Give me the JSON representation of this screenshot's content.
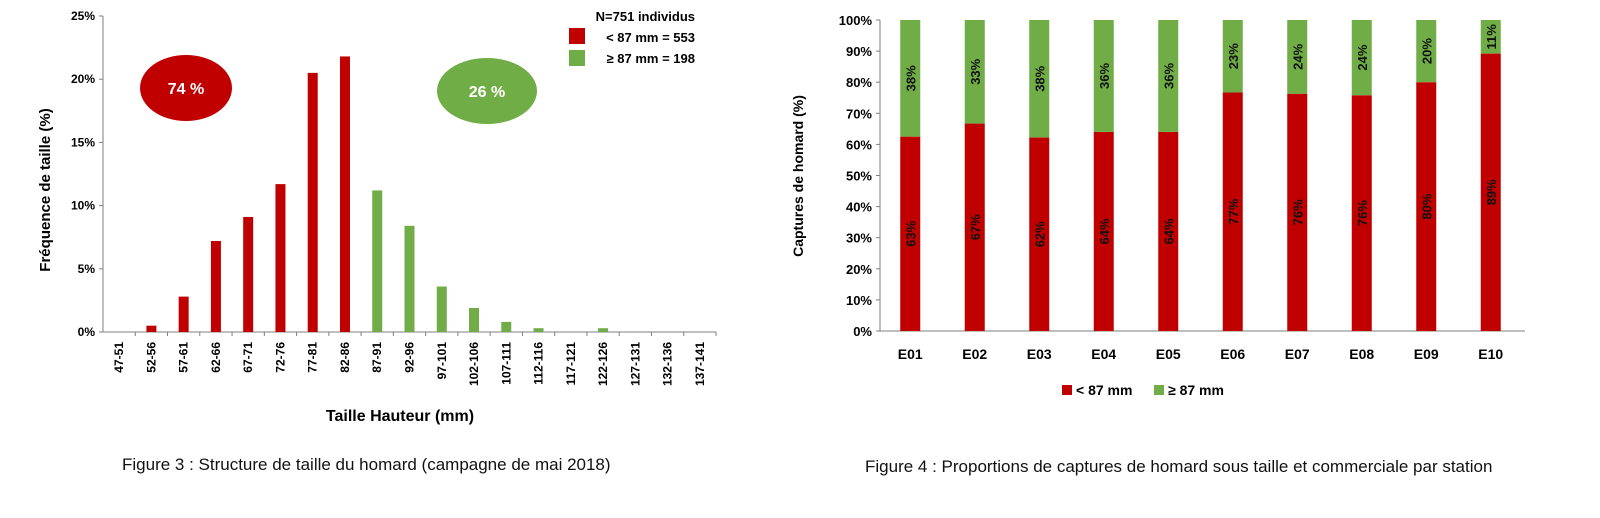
{
  "colors": {
    "red": "#c00000",
    "green": "#70ad47",
    "axis": "#7f7f7f"
  },
  "chart_data": [
    {
      "type": "bar",
      "title": "",
      "xlabel": "Taille Hauteur (mm)",
      "ylabel": "Fréquence de taille (%)",
      "ylim": [
        0,
        25
      ],
      "yticks": [
        "0%",
        "5%",
        "10%",
        "15%",
        "20%",
        "25%"
      ],
      "categories": [
        "47-51",
        "52-56",
        "57-61",
        "62-66",
        "67-71",
        "72-76",
        "77-81",
        "82-86",
        "87-91",
        "92-96",
        "97-101",
        "102-106",
        "107-111",
        "112-116",
        "117-121",
        "122-126",
        "127-131",
        "132-136",
        "137-141"
      ],
      "values": [
        0,
        0.5,
        2.8,
        7.2,
        9.1,
        11.7,
        20.5,
        21.8,
        11.2,
        8.4,
        3.6,
        1.9,
        0.8,
        0.3,
        0,
        0.3,
        0,
        0,
        0
      ],
      "series_of_category": [
        "red",
        "red",
        "red",
        "red",
        "red",
        "red",
        "red",
        "red",
        "green",
        "green",
        "green",
        "green",
        "green",
        "green",
        "green",
        "green",
        "green",
        "green",
        "green"
      ],
      "legend": {
        "title": "N=751 individus",
        "entries": [
          "< 87 mm = 553",
          "≥ 87 mm = 198"
        ],
        "placement": "top-right"
      },
      "annotations": {
        "red": "74 %",
        "green": "26 %"
      },
      "caption": "Figure 3 : Structure de taille du homard (campagne de mai 2018)"
    },
    {
      "type": "bar",
      "stacked": true,
      "xlabel": "",
      "ylabel": "Captures de homard (%)",
      "ylim": [
        0,
        100
      ],
      "yticks": [
        "0%",
        "10%",
        "20%",
        "30%",
        "40%",
        "50%",
        "60%",
        "70%",
        "80%",
        "90%",
        "100%"
      ],
      "categories": [
        "E01",
        "E02",
        "E03",
        "E04",
        "E05",
        "E06",
        "E07",
        "E08",
        "E09",
        "E10"
      ],
      "series": [
        {
          "name": "< 87 mm",
          "values": [
            62.5,
            66.7,
            62.2,
            64.0,
            64.0,
            76.7,
            76.3,
            75.8,
            80.0,
            89.2
          ],
          "labels": [
            "63%",
            "67%",
            "62%",
            "64%",
            "64%",
            "77%",
            "76%",
            "76%",
            "80%",
            "89%"
          ]
        },
        {
          "name": "≥ 87 mm",
          "values": [
            37.5,
            33.3,
            37.8,
            36.0,
            36.0,
            23.3,
            23.7,
            24.2,
            20.0,
            10.8
          ],
          "labels": [
            "38%",
            "33%",
            "38%",
            "36%",
            "36%",
            "23%",
            "24%",
            "24%",
            "20%",
            "11%"
          ]
        }
      ],
      "legend": {
        "entries": [
          "< 87 mm",
          "≥ 87 mm"
        ],
        "placement": "bottom"
      },
      "caption": "Figure 4 : Proportions de captures de homard sous taille et commerciale par station"
    }
  ]
}
